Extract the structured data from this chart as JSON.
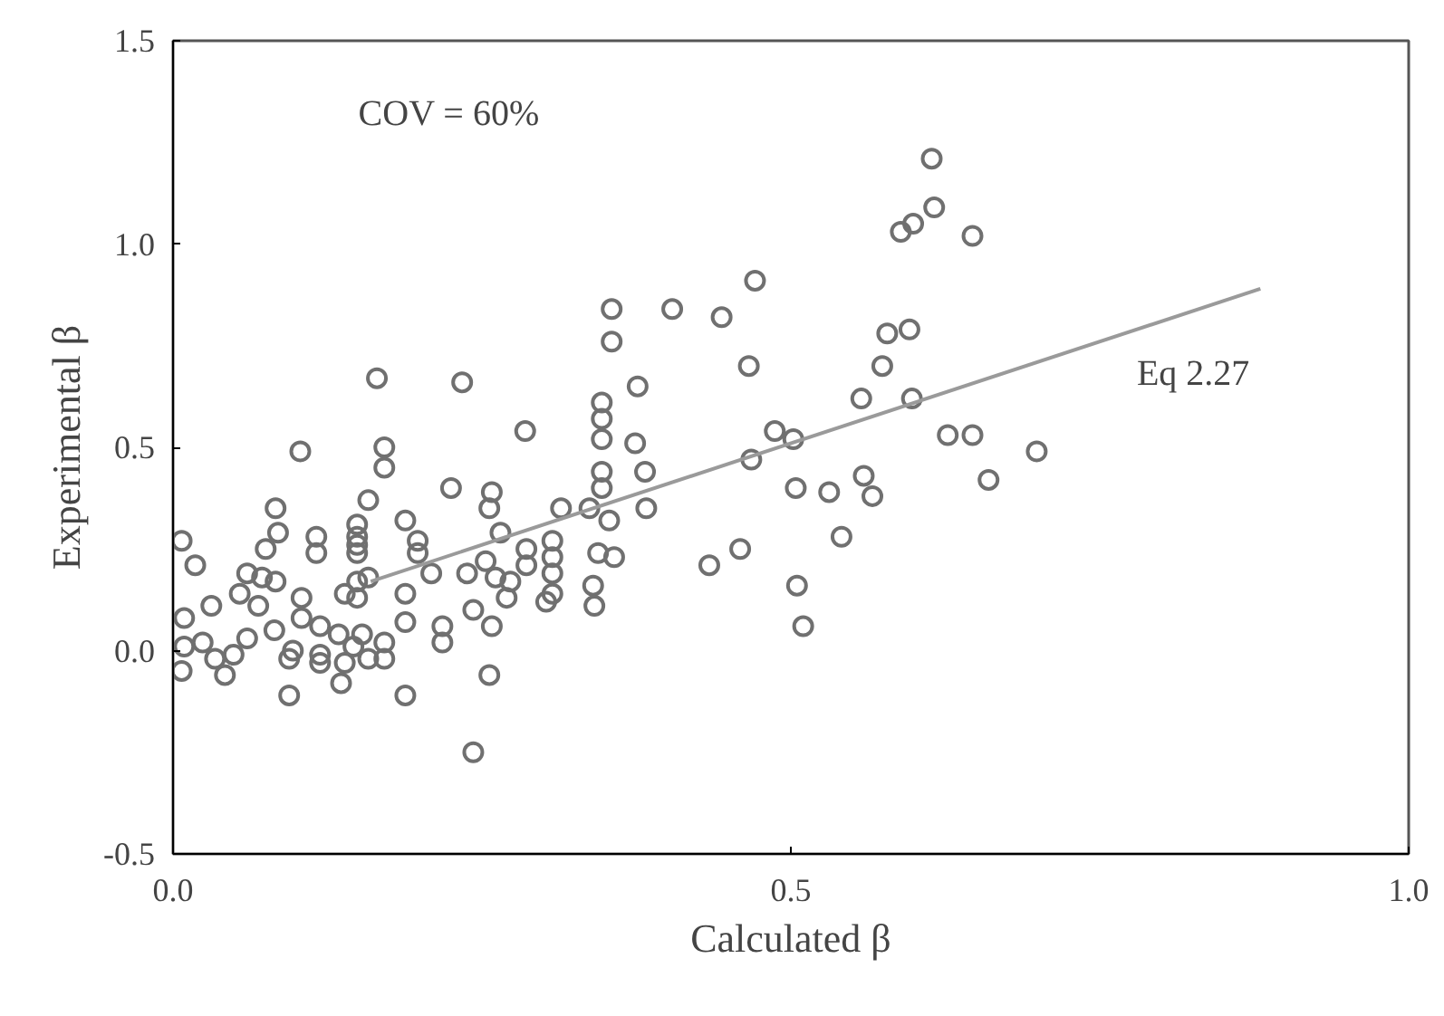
{
  "chart_data": {
    "type": "scatter",
    "xlabel": "Calculated β",
    "ylabel": "Experimental β",
    "xlim": [
      0,
      1
    ],
    "ylim": [
      -0.5,
      1.5
    ],
    "xticks": [
      {
        "value": 0,
        "label": "0.0"
      },
      {
        "value": 0.5,
        "label": "0.5"
      },
      {
        "value": 1,
        "label": "1.0"
      }
    ],
    "yticks": [
      {
        "value": -0.5,
        "label": "-0.5"
      },
      {
        "value": 0,
        "label": "0.0"
      },
      {
        "value": 0.5,
        "label": "0.5"
      },
      {
        "value": 1,
        "label": "1.0"
      },
      {
        "value": 1.5,
        "label": "1.5"
      }
    ],
    "grid": false,
    "marker": "circle",
    "annotations": [
      "COV = 60%",
      "Eq 2.27"
    ],
    "series": [
      {
        "color": "#707070",
        "x": [
          0.165,
          0.234,
          0.103,
          0.171,
          0.171,
          0.285,
          0.225,
          0.258,
          0.256,
          0.158,
          0.083,
          0.085,
          0.075,
          0.116,
          0.116,
          0.149,
          0.149,
          0.149,
          0.149,
          0.188,
          0.198,
          0.198,
          0.265,
          0.007,
          0.018,
          0.06,
          0.031,
          0.072,
          0.083,
          0.054,
          0.069,
          0.104,
          0.139,
          0.149,
          0.158,
          0.149,
          0.188,
          0.209,
          0.238,
          0.253,
          0.261,
          0.243,
          0.273,
          0.27,
          0.009,
          0.009,
          0.007,
          0.024,
          0.034,
          0.042,
          0.049,
          0.06,
          0.082,
          0.097,
          0.094,
          0.104,
          0.119,
          0.119,
          0.119,
          0.134,
          0.139,
          0.146,
          0.153,
          0.158,
          0.171,
          0.171,
          0.188,
          0.218,
          0.218,
          0.094,
          0.136,
          0.188,
          0.256,
          0.258,
          0.243,
          0.471,
          0.355,
          0.404,
          0.444,
          0.355,
          0.466,
          0.376,
          0.347,
          0.347,
          0.347,
          0.374,
          0.347,
          0.382,
          0.347,
          0.314,
          0.337,
          0.353,
          0.383,
          0.357,
          0.344,
          0.307,
          0.307,
          0.307,
          0.286,
          0.286,
          0.34,
          0.307,
          0.302,
          0.341,
          0.468,
          0.487,
          0.502,
          0.504,
          0.531,
          0.559,
          0.566,
          0.541,
          0.459,
          0.434,
          0.505,
          0.51,
          0.557,
          0.574,
          0.578,
          0.598,
          0.614,
          0.616,
          0.599,
          0.589,
          0.647,
          0.627,
          0.647,
          0.699,
          0.66,
          0.596
        ],
        "values": [
          0.67,
          0.66,
          0.49,
          0.5,
          0.45,
          0.54,
          0.4,
          0.39,
          0.35,
          0.37,
          0.35,
          0.29,
          0.25,
          0.28,
          0.24,
          0.31,
          0.28,
          0.26,
          0.24,
          0.32,
          0.27,
          0.24,
          0.29,
          0.27,
          0.21,
          0.19,
          0.11,
          0.18,
          0.17,
          0.14,
          0.11,
          0.13,
          0.14,
          0.17,
          0.18,
          0.13,
          0.14,
          0.19,
          0.19,
          0.22,
          0.18,
          0.1,
          0.17,
          0.13,
          0.08,
          0.01,
          -0.05,
          0.02,
          -0.02,
          -0.06,
          -0.01,
          0.03,
          0.05,
          0.0,
          -0.02,
          0.08,
          0.06,
          -0.01,
          -0.03,
          0.04,
          -0.03,
          0.01,
          0.04,
          -0.02,
          0.02,
          -0.02,
          0.07,
          0.06,
          0.02,
          -0.11,
          -0.08,
          -0.11,
          -0.06,
          0.06,
          -0.25,
          0.91,
          0.84,
          0.84,
          0.82,
          0.76,
          0.7,
          0.65,
          0.61,
          0.57,
          0.52,
          0.51,
          0.44,
          0.44,
          0.4,
          0.35,
          0.35,
          0.32,
          0.35,
          0.23,
          0.24,
          0.27,
          0.23,
          0.19,
          0.25,
          0.21,
          0.16,
          0.14,
          0.12,
          0.11,
          0.47,
          0.54,
          0.52,
          0.4,
          0.39,
          0.43,
          0.38,
          0.28,
          0.25,
          0.21,
          0.16,
          0.06,
          0.62,
          0.7,
          0.78,
          0.62,
          1.21,
          1.09,
          1.05,
          1.03,
          1.02,
          0.53,
          0.53,
          0.49,
          0.42,
          0.79
        ]
      },
      {
        "type": "line",
        "color": "#9a9a9a",
        "marker": "none",
        "x": [
          0.16,
          0.88
        ],
        "values": [
          0.17,
          0.89
        ]
      }
    ]
  }
}
